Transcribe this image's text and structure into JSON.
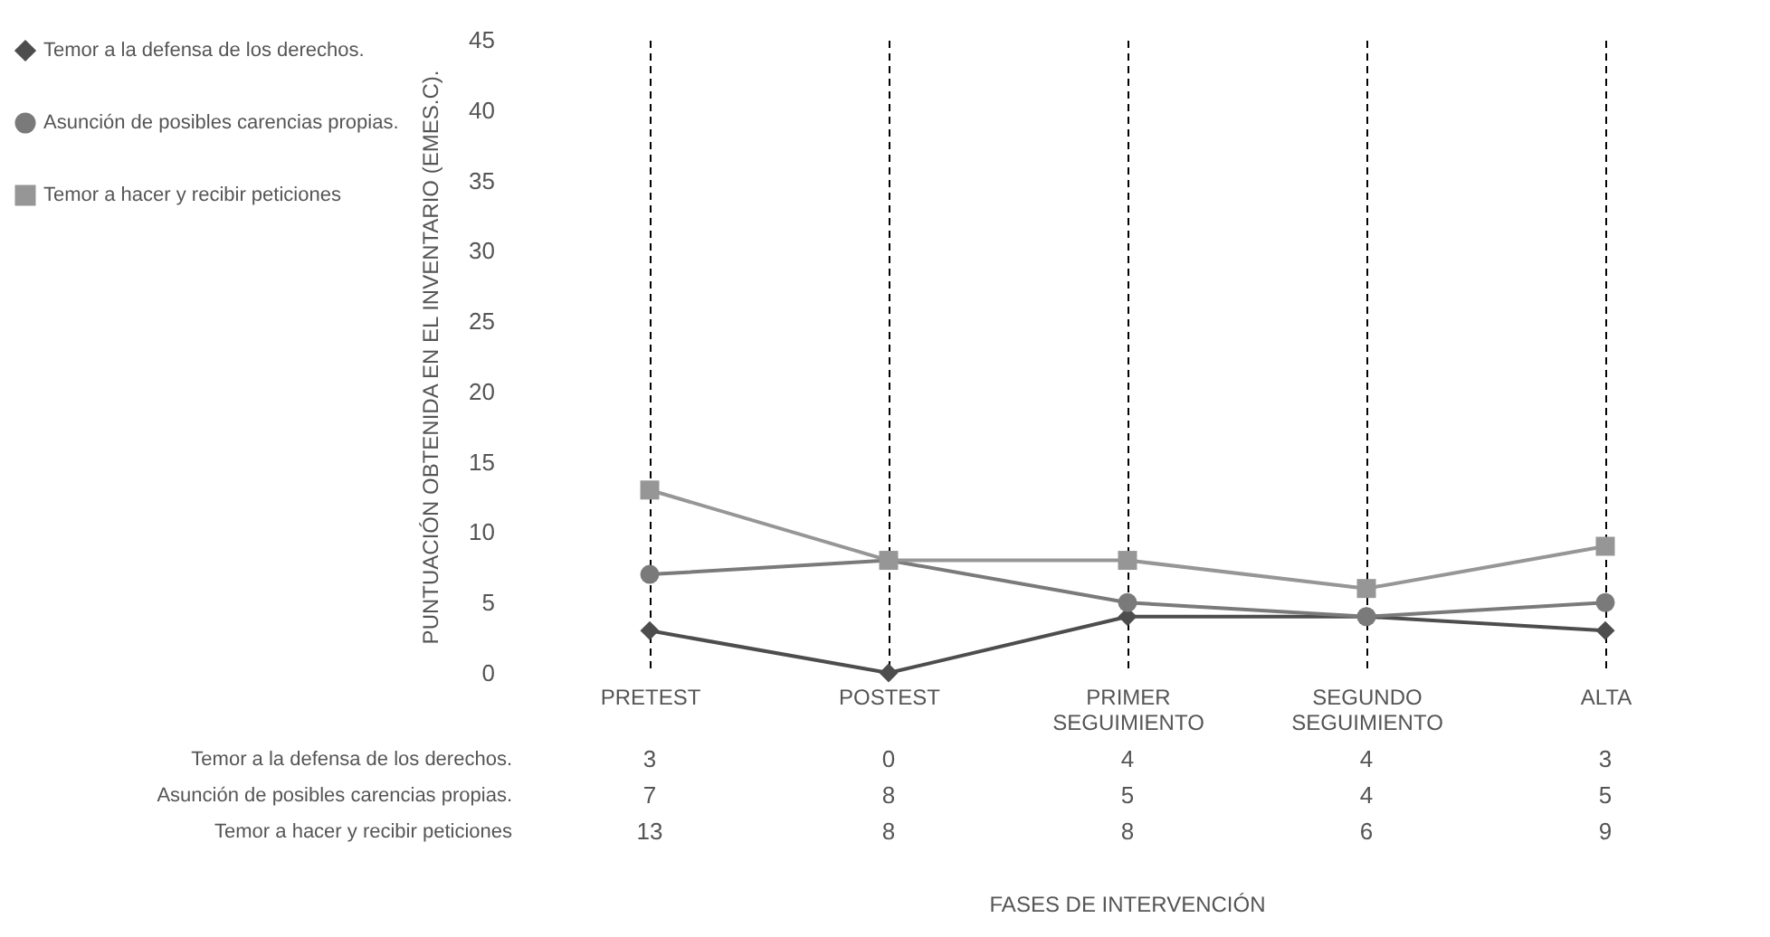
{
  "chart_data": {
    "type": "line",
    "annotations": [
      "FASES DE INTERVENCIÓN"
    ],
    "ylabel": "PUNTUACIÓN OBTENIDA EN EL INVENTARIO (EMES.C).",
    "categories": [
      "PRETEST",
      "POSTEST",
      "PRIMER SEGUIMIENTO",
      "SEGUNDO SEGUIMIENTO",
      "ALTA"
    ],
    "series": [
      {
        "name": "Temor a la defensa de los derechos.",
        "color": "#4d4d4d",
        "marker": "diamond",
        "values": [
          3,
          0,
          4,
          4,
          3
        ]
      },
      {
        "name": "Asunción de posibles carencias propias.",
        "color": "#7a7a7a",
        "marker": "circle",
        "values": [
          7,
          8,
          5,
          4,
          5
        ]
      },
      {
        "name": "Temor a hacer y recibir peticiones",
        "color": "#969696",
        "marker": "square",
        "values": [
          13,
          8,
          8,
          6,
          9
        ]
      }
    ],
    "ylim": [
      0,
      45
    ],
    "yticks": [
      0,
      5,
      10,
      15,
      20,
      25,
      30,
      35,
      40,
      45
    ],
    "grid": "x",
    "legend": "left",
    "data_labels": true
  }
}
